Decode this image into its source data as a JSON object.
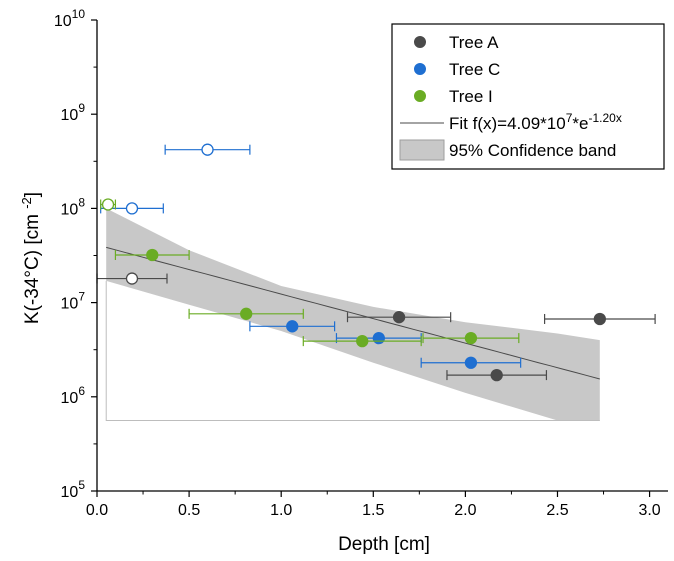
{
  "chart_data": {
    "type": "scatter",
    "xlabel": "Depth [cm]",
    "ylabel": "K(-34°C) [cm⁻²]",
    "yscale": "log",
    "xlim": [
      0,
      3.1
    ],
    "ylim": [
      100000,
      10000000000
    ],
    "x_ticks": [
      "0.0",
      "0.5",
      "1.0",
      "1.5",
      "2.0",
      "2.5",
      "3.0"
    ],
    "y_ticks": [
      {
        "base": "10",
        "exp": "5",
        "value": 100000
      },
      {
        "base": "10",
        "exp": "6",
        "value": 1000000
      },
      {
        "base": "10",
        "exp": "7",
        "value": 10000000
      },
      {
        "base": "10",
        "exp": "8",
        "value": 100000000
      },
      {
        "base": "10",
        "exp": "9",
        "value": 1000000000
      },
      {
        "base": "10",
        "exp": "10",
        "value": 10000000000
      }
    ],
    "legend_position": "top-right",
    "series": [
      {
        "name": "Tree A",
        "color": "#4a4a4a",
        "points": [
          {
            "x": 0.19,
            "y": 18000000,
            "xerr": 0.19,
            "hollow": true
          },
          {
            "x": 1.64,
            "y": 7000000,
            "xerr": 0.28,
            "hollow": false
          },
          {
            "x": 2.17,
            "y": 1700000,
            "xerr": 0.27,
            "hollow": false
          },
          {
            "x": 2.73,
            "y": 6700000,
            "xerr": 0.3,
            "hollow": false
          }
        ]
      },
      {
        "name": "Tree C",
        "color": "#1f6fd1",
        "points": [
          {
            "x": 0.6,
            "y": 420000000,
            "xerr": 0.23,
            "hollow": true
          },
          {
            "x": 0.19,
            "y": 100000000,
            "xerr": 0.17,
            "hollow": true
          },
          {
            "x": 1.06,
            "y": 5600000,
            "xerr": 0.23,
            "hollow": false
          },
          {
            "x": 1.53,
            "y": 4200000,
            "xerr": 0.23,
            "hollow": false
          },
          {
            "x": 2.03,
            "y": 2300000,
            "xerr": 0.27,
            "hollow": false
          }
        ]
      },
      {
        "name": "Tree I",
        "color": "#6aac24",
        "points": [
          {
            "x": 0.06,
            "y": 110000000,
            "xerr": 0.04,
            "hollow": true
          },
          {
            "x": 0.3,
            "y": 32000000,
            "xerr": 0.2,
            "hollow": false
          },
          {
            "x": 0.81,
            "y": 7600000,
            "xerr": 0.31,
            "hollow": false
          },
          {
            "x": 1.44,
            "y": 3900000,
            "xerr": 0.32,
            "hollow": false
          },
          {
            "x": 2.03,
            "y": 4200000,
            "xerr": 0.26,
            "hollow": false
          }
        ]
      }
    ],
    "fit": {
      "label_prefix": "Fit f(x)=4.09*10",
      "label_exp1": "7",
      "label_mid": "*e",
      "label_exp2": "-1.20x",
      "a": 40900000,
      "b": -1.2,
      "x_range": [
        0.05,
        2.73
      ],
      "color": "#4a4a4a"
    },
    "confidence_band": {
      "label": "95% Confidence band",
      "color": "#c8c8c8",
      "x": [
        0.05,
        0.5,
        1.0,
        1.5,
        2.0,
        2.5,
        2.73
      ],
      "upper": [
        100000000,
        36000000,
        15000000,
        9000000,
        6200000,
        4700000,
        4000000
      ],
      "lower": [
        17000000,
        9500000,
        5000000,
        2300000,
        1100000,
        560000,
        560000
      ],
      "floor": 560000
    }
  }
}
